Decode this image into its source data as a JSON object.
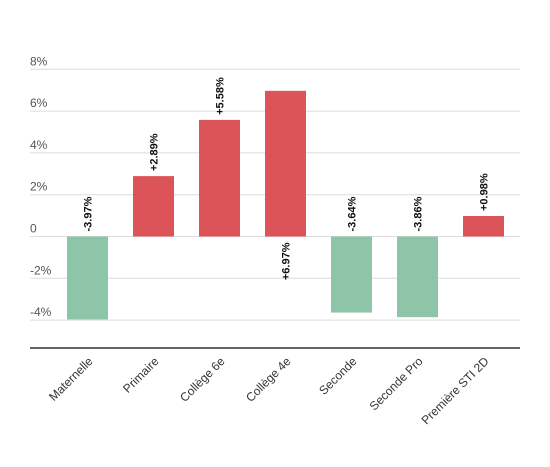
{
  "chart_data": {
    "type": "bar",
    "title": "",
    "xlabel": "",
    "ylabel": "",
    "categories": [
      "Maternelle",
      "Primaire",
      "Collège 6e",
      "Collège 4e",
      "Seconde",
      "Seconde Pro",
      "Première STI 2D"
    ],
    "values": [
      -3.97,
      2.89,
      5.58,
      6.97,
      -3.64,
      -3.86,
      0.98
    ],
    "data_labels": [
      "-3.97%",
      "+2.89%",
      "+5.58%",
      "+6.97%",
      "-3.64%",
      "-3.86%",
      "+0.98%"
    ],
    "ylim": [
      -5.2,
      8.6
    ],
    "y_ticks": [
      {
        "value": 8,
        "label": "8%"
      },
      {
        "value": 6,
        "label": "6%"
      },
      {
        "value": 4,
        "label": "4%"
      },
      {
        "value": 2,
        "label": "2%"
      },
      {
        "value": 0,
        "label": "0"
      },
      {
        "value": -2,
        "label": "-2%"
      },
      {
        "value": -4,
        "label": "-4%"
      }
    ],
    "grid": true,
    "legend": "none",
    "colors": {
      "positive": "#dc5457",
      "negative": "#8ec4a8",
      "grid": "#dcdcdc",
      "axis": "#333333"
    }
  }
}
